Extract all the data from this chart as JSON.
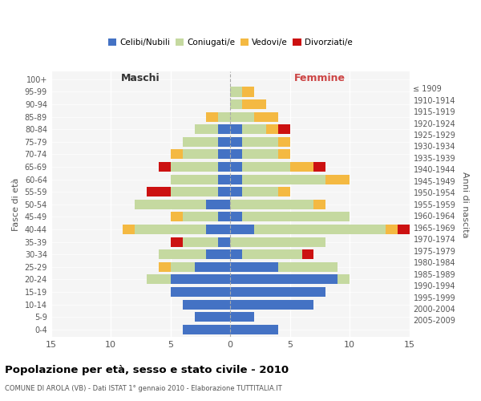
{
  "age_groups": [
    "0-4",
    "5-9",
    "10-14",
    "15-19",
    "20-24",
    "25-29",
    "30-34",
    "35-39",
    "40-44",
    "45-49",
    "50-54",
    "55-59",
    "60-64",
    "65-69",
    "70-74",
    "75-79",
    "80-84",
    "85-89",
    "90-94",
    "95-99",
    "100+"
  ],
  "birth_years": [
    "2005-2009",
    "2000-2004",
    "1995-1999",
    "1990-1994",
    "1985-1989",
    "1980-1984",
    "1975-1979",
    "1970-1974",
    "1965-1969",
    "1960-1964",
    "1955-1959",
    "1950-1954",
    "1945-1949",
    "1940-1944",
    "1935-1939",
    "1930-1934",
    "1925-1929",
    "1920-1924",
    "1915-1919",
    "1910-1914",
    "≤ 1909"
  ],
  "maschi_celibi": [
    4,
    3,
    4,
    5,
    5,
    3,
    2,
    1,
    2,
    1,
    2,
    1,
    1,
    1,
    1,
    1,
    1,
    0,
    0,
    0,
    0
  ],
  "maschi_coniugati": [
    0,
    0,
    0,
    0,
    2,
    2,
    4,
    3,
    6,
    3,
    6,
    4,
    4,
    4,
    3,
    3,
    2,
    1,
    0,
    0,
    0
  ],
  "maschi_vedovi": [
    0,
    0,
    0,
    0,
    0,
    1,
    0,
    0,
    1,
    1,
    0,
    0,
    0,
    0,
    1,
    0,
    0,
    1,
    0,
    0,
    0
  ],
  "maschi_divorziati": [
    0,
    0,
    0,
    0,
    0,
    0,
    0,
    1,
    0,
    0,
    0,
    2,
    0,
    1,
    0,
    0,
    0,
    0,
    0,
    0,
    0
  ],
  "femmine_celibi": [
    4,
    2,
    7,
    8,
    9,
    4,
    1,
    0,
    2,
    1,
    0,
    1,
    1,
    1,
    1,
    1,
    1,
    0,
    0,
    0,
    0
  ],
  "femmine_coniugati": [
    0,
    0,
    0,
    0,
    1,
    5,
    5,
    8,
    11,
    9,
    7,
    3,
    7,
    4,
    3,
    3,
    2,
    2,
    1,
    1,
    0
  ],
  "femmine_vedovi": [
    0,
    0,
    0,
    0,
    0,
    0,
    0,
    0,
    1,
    0,
    1,
    1,
    2,
    2,
    1,
    1,
    1,
    2,
    2,
    1,
    0
  ],
  "femmine_divorziati": [
    0,
    0,
    0,
    0,
    0,
    0,
    1,
    0,
    1,
    0,
    0,
    0,
    0,
    1,
    0,
    0,
    1,
    0,
    0,
    0,
    0
  ],
  "color_celibi": "#4472c4",
  "color_coniugati": "#c5d9a0",
  "color_vedovi": "#f4b942",
  "color_divorziati": "#cc1111",
  "xlim": 15,
  "title": "Popolazione per età, sesso e stato civile - 2010",
  "subtitle": "COMUNE DI AROLA (VB) - Dati ISTAT 1° gennaio 2010 - Elaborazione TUTTITALIA.IT",
  "ylabel_left": "Fasce di età",
  "ylabel_right": "Anni di nascita",
  "xlabel_maschi": "Maschi",
  "xlabel_femmine": "Femmine",
  "maschi_color": "#444444",
  "femmine_color": "#444444",
  "bg_color": "#f5f5f5"
}
